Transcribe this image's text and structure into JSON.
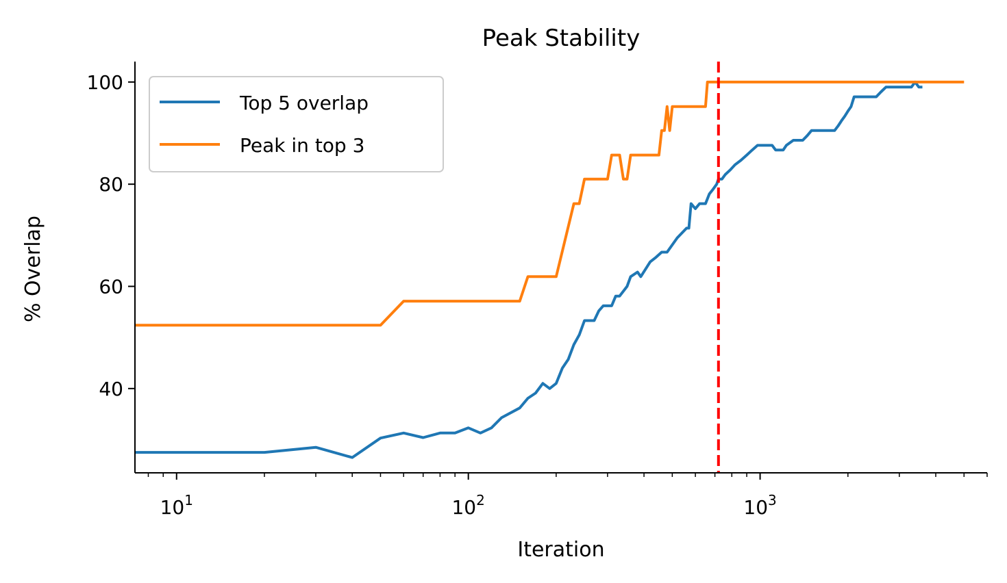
{
  "chart_data": {
    "type": "line",
    "title": "Peak Stability",
    "xlabel": "Iteration",
    "ylabel": "% Overlap",
    "xscale": "log",
    "xlim": [
      7.2,
      6000
    ],
    "ylim": [
      23.5,
      104
    ],
    "x_ticks": [
      {
        "base": "10",
        "exp": "1"
      },
      {
        "base": "10",
        "exp": "2"
      },
      {
        "base": "10",
        "exp": "3"
      }
    ],
    "y_ticks": [
      40,
      60,
      80,
      100
    ],
    "grid": false,
    "legend_position": "top-left",
    "reference_line": {
      "x": 720,
      "style": "dashed",
      "color": "#ff0000"
    },
    "series": [
      {
        "name": "Top 5 overlap",
        "color": "#1f77b4",
        "points": [
          [
            7.2,
            27.5
          ],
          [
            10,
            27.5
          ],
          [
            20,
            27.5
          ],
          [
            30,
            28.5
          ],
          [
            40,
            26.5
          ],
          [
            50,
            30.3
          ],
          [
            60,
            31.3
          ],
          [
            70,
            30.4
          ],
          [
            80,
            31.3
          ],
          [
            90,
            31.3
          ],
          [
            100,
            32.3
          ],
          [
            110,
            31.3
          ],
          [
            120,
            32.3
          ],
          [
            130,
            34.3
          ],
          [
            150,
            36.2
          ],
          [
            160,
            38.1
          ],
          [
            170,
            39.1
          ],
          [
            180,
            41
          ],
          [
            190,
            40
          ],
          [
            200,
            41
          ],
          [
            210,
            44
          ],
          [
            220,
            45.7
          ],
          [
            230,
            48.6
          ],
          [
            240,
            50.5
          ],
          [
            250,
            53.3
          ],
          [
            270,
            53.3
          ],
          [
            280,
            55.2
          ],
          [
            290,
            56.2
          ],
          [
            310,
            56.2
          ],
          [
            320,
            58.1
          ],
          [
            330,
            58.1
          ],
          [
            350,
            60
          ],
          [
            360,
            61.9
          ],
          [
            380,
            62.8
          ],
          [
            390,
            61.9
          ],
          [
            420,
            64.8
          ],
          [
            440,
            65.7
          ],
          [
            460,
            66.7
          ],
          [
            480,
            66.7
          ],
          [
            520,
            69.5
          ],
          [
            560,
            71.4
          ],
          [
            570,
            71.4
          ],
          [
            580,
            76.2
          ],
          [
            600,
            75.2
          ],
          [
            620,
            76.2
          ],
          [
            650,
            76.2
          ],
          [
            670,
            78.1
          ],
          [
            690,
            79
          ],
          [
            710,
            80
          ],
          [
            720,
            81
          ],
          [
            740,
            81
          ],
          [
            760,
            81.9
          ],
          [
            790,
            82.8
          ],
          [
            820,
            83.8
          ],
          [
            860,
            84.7
          ],
          [
            900,
            85.7
          ],
          [
            940,
            86.7
          ],
          [
            980,
            87.6
          ],
          [
            1050,
            87.6
          ],
          [
            1100,
            87.6
          ],
          [
            1130,
            86.7
          ],
          [
            1200,
            86.7
          ],
          [
            1230,
            87.6
          ],
          [
            1300,
            88.6
          ],
          [
            1400,
            88.6
          ],
          [
            1450,
            89.5
          ],
          [
            1500,
            90.5
          ],
          [
            1800,
            90.5
          ],
          [
            1850,
            91.4
          ],
          [
            1900,
            92.4
          ],
          [
            1950,
            93.3
          ],
          [
            2000,
            94.3
          ],
          [
            2050,
            95.2
          ],
          [
            2100,
            97.1
          ],
          [
            2300,
            97.1
          ],
          [
            2500,
            97.1
          ],
          [
            2600,
            98.1
          ],
          [
            2700,
            99
          ],
          [
            3200,
            99
          ],
          [
            3300,
            99
          ],
          [
            3400,
            100
          ],
          [
            3500,
            99
          ],
          [
            3600,
            99
          ]
        ]
      },
      {
        "name": "Peak in top 3",
        "color": "#ff7f0e",
        "points": [
          [
            7.2,
            52.4
          ],
          [
            10,
            52.4
          ],
          [
            20,
            52.4
          ],
          [
            30,
            52.4
          ],
          [
            40,
            52.4
          ],
          [
            50,
            52.4
          ],
          [
            60,
            57.1
          ],
          [
            100,
            57.1
          ],
          [
            150,
            57.1
          ],
          [
            160,
            61.9
          ],
          [
            200,
            61.9
          ],
          [
            230,
            76.2
          ],
          [
            240,
            76.2
          ],
          [
            250,
            81
          ],
          [
            300,
            81
          ],
          [
            310,
            85.7
          ],
          [
            330,
            85.7
          ],
          [
            340,
            81
          ],
          [
            350,
            81
          ],
          [
            360,
            85.7
          ],
          [
            450,
            85.7
          ],
          [
            460,
            90.5
          ],
          [
            470,
            90.5
          ],
          [
            480,
            95.2
          ],
          [
            490,
            90.5
          ],
          [
            500,
            95.2
          ],
          [
            650,
            95.2
          ],
          [
            660,
            100
          ],
          [
            1000,
            100
          ],
          [
            2000,
            100
          ],
          [
            5000,
            100
          ]
        ]
      }
    ]
  }
}
